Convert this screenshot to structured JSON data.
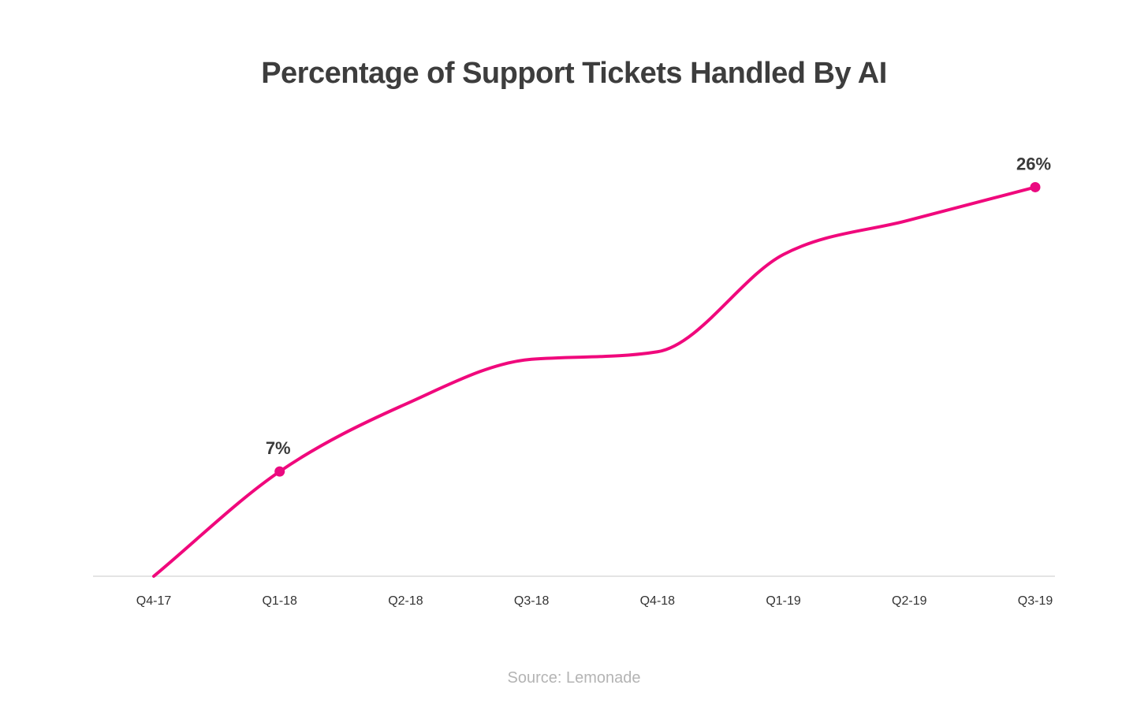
{
  "chart_data": {
    "type": "line",
    "title": "Percentage of Support Tickets Handled By AI",
    "xlabel": "",
    "ylabel": "",
    "categories": [
      "Q4-17",
      "Q1-18",
      "Q2-18",
      "Q3-18",
      "Q4-18",
      "Q1-19",
      "Q2-19",
      "Q3-19"
    ],
    "series": [
      {
        "values": [
          0,
          7,
          11.5,
          14.5,
          15,
          21.5,
          23.8,
          26
        ]
      }
    ],
    "data_labels": [
      {
        "index": 1,
        "text": "7%"
      },
      {
        "index": 7,
        "text": "26%"
      }
    ],
    "ylim": [
      0,
      28.5
    ],
    "grid": false,
    "legend": "none",
    "line_color": "#f0087c",
    "marker_color": "#ea0a80",
    "source": "Source: Lemonade"
  }
}
